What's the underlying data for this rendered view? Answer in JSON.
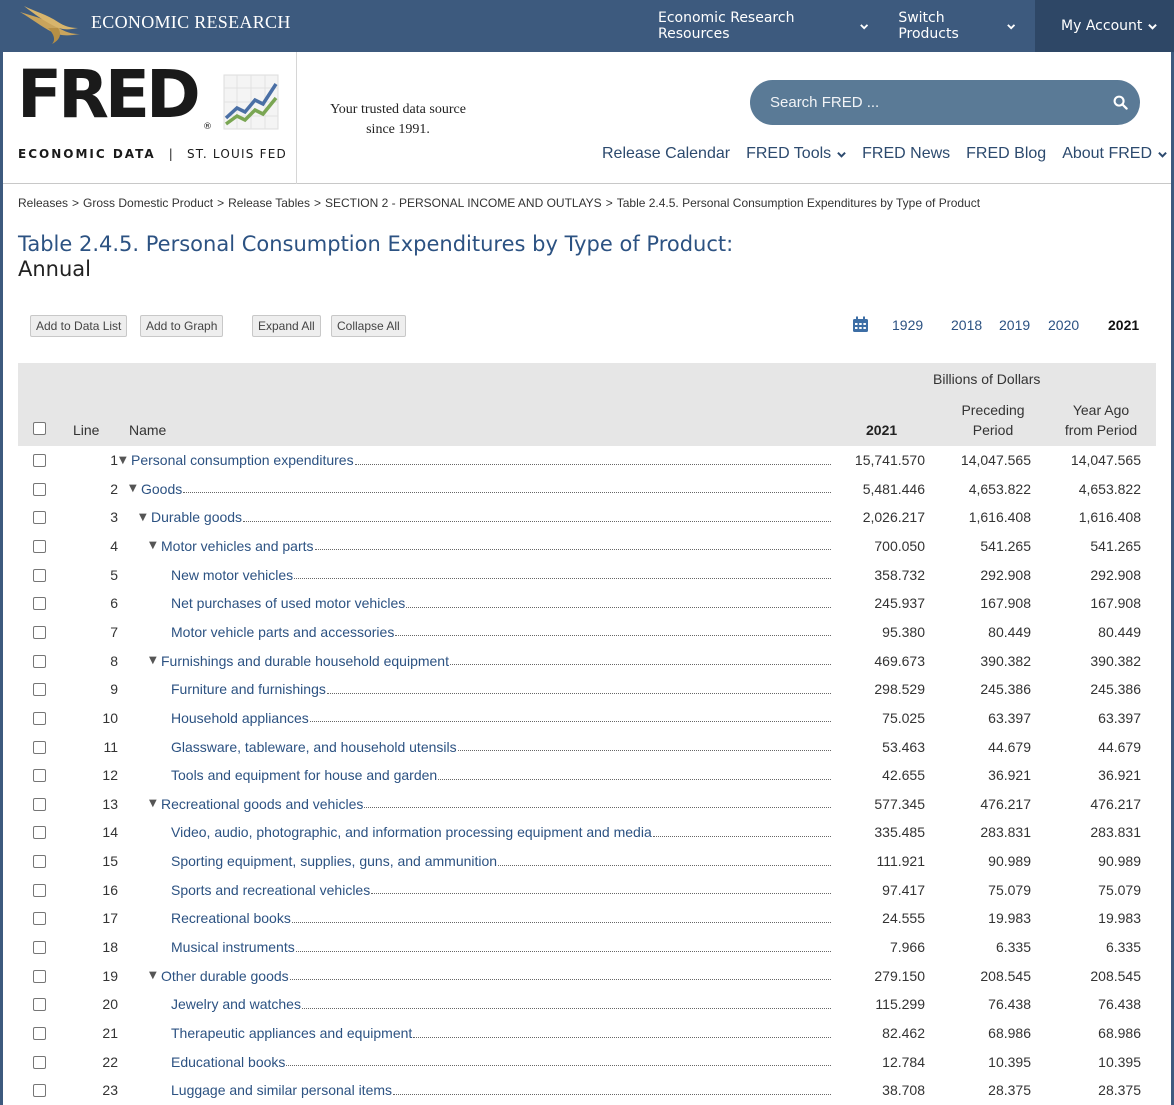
{
  "topbar": {
    "brand": "ECONOMIC RESEARCH",
    "nav": [
      "Economic Research Resources",
      "Switch Products",
      "My Account"
    ]
  },
  "header": {
    "logo_word": "FRED",
    "logo_sub_left": "ECONOMIC DATA",
    "logo_sub_right": "ST. LOUIS FED",
    "tagline_1": "Your trusted data source",
    "tagline_2": "since 1991.",
    "search_placeholder": "Search FRED ...",
    "nav": [
      "Release Calendar",
      "FRED Tools",
      "FRED News",
      "FRED Blog",
      "About FRED"
    ]
  },
  "breadcrumb": [
    "Releases",
    "Gross Domestic Product",
    "Release Tables",
    "SECTION 2 - PERSONAL INCOME AND OUTLAYS",
    "Table 2.4.5. Personal Consumption Expenditures by Type of Product"
  ],
  "page": {
    "title": "Table 2.4.5. Personal Consumption Expenditures by Type of Product:",
    "subtitle": "Annual"
  },
  "buttons": [
    "Add to Data List",
    "Add to Graph",
    "Expand All",
    "Collapse All"
  ],
  "years": [
    "1929",
    "2018",
    "2019",
    "2020",
    "2021"
  ],
  "current_year": "2021",
  "table": {
    "units": "Billions of Dollars",
    "headers": {
      "line": "Line",
      "name": "Name",
      "col1": "2021",
      "col2a": "Preceding",
      "col2b": "Period",
      "col3a": "Year Ago",
      "col3b": "from Period"
    },
    "rows": [
      {
        "line": "1",
        "name": "Personal consumption expenditures",
        "level": 0,
        "expandable": true,
        "v1": "15,741.570",
        "v2": "14,047.565",
        "v3": "14,047.565"
      },
      {
        "line": "2",
        "name": "Goods",
        "level": 1,
        "expandable": true,
        "v1": "5,481.446",
        "v2": "4,653.822",
        "v3": "4,653.822"
      },
      {
        "line": "3",
        "name": "Durable goods",
        "level": 2,
        "expandable": true,
        "v1": "2,026.217",
        "v2": "1,616.408",
        "v3": "1,616.408"
      },
      {
        "line": "4",
        "name": "Motor vehicles and parts",
        "level": 3,
        "expandable": true,
        "v1": "700.050",
        "v2": "541.265",
        "v3": "541.265"
      },
      {
        "line": "5",
        "name": "New motor vehicles",
        "level": 4,
        "expandable": false,
        "v1": "358.732",
        "v2": "292.908",
        "v3": "292.908"
      },
      {
        "line": "6",
        "name": "Net purchases of used motor vehicles",
        "level": 4,
        "expandable": false,
        "v1": "245.937",
        "v2": "167.908",
        "v3": "167.908"
      },
      {
        "line": "7",
        "name": "Motor vehicle parts and accessories",
        "level": 4,
        "expandable": false,
        "v1": "95.380",
        "v2": "80.449",
        "v3": "80.449"
      },
      {
        "line": "8",
        "name": "Furnishings and durable household equipment",
        "level": 3,
        "expandable": true,
        "v1": "469.673",
        "v2": "390.382",
        "v3": "390.382"
      },
      {
        "line": "9",
        "name": "Furniture and furnishings",
        "level": 4,
        "expandable": false,
        "v1": "298.529",
        "v2": "245.386",
        "v3": "245.386"
      },
      {
        "line": "10",
        "name": "Household appliances",
        "level": 4,
        "expandable": false,
        "v1": "75.025",
        "v2": "63.397",
        "v3": "63.397"
      },
      {
        "line": "11",
        "name": "Glassware, tableware, and household utensils",
        "level": 4,
        "expandable": false,
        "v1": "53.463",
        "v2": "44.679",
        "v3": "44.679"
      },
      {
        "line": "12",
        "name": "Tools and equipment for house and garden",
        "level": 4,
        "expandable": false,
        "v1": "42.655",
        "v2": "36.921",
        "v3": "36.921"
      },
      {
        "line": "13",
        "name": "Recreational goods and vehicles",
        "level": 3,
        "expandable": true,
        "v1": "577.345",
        "v2": "476.217",
        "v3": "476.217"
      },
      {
        "line": "14",
        "name": "Video, audio, photographic, and information processing equipment and media",
        "level": 4,
        "expandable": false,
        "v1": "335.485",
        "v2": "283.831",
        "v3": "283.831"
      },
      {
        "line": "15",
        "name": "Sporting equipment, supplies, guns, and ammunition",
        "level": 4,
        "expandable": false,
        "v1": "111.921",
        "v2": "90.989",
        "v3": "90.989"
      },
      {
        "line": "16",
        "name": "Sports and recreational vehicles",
        "level": 4,
        "expandable": false,
        "v1": "97.417",
        "v2": "75.079",
        "v3": "75.079"
      },
      {
        "line": "17",
        "name": "Recreational books",
        "level": 4,
        "expandable": false,
        "v1": "24.555",
        "v2": "19.983",
        "v3": "19.983"
      },
      {
        "line": "18",
        "name": "Musical instruments",
        "level": 4,
        "expandable": false,
        "v1": "7.966",
        "v2": "6.335",
        "v3": "6.335"
      },
      {
        "line": "19",
        "name": "Other durable goods",
        "level": 3,
        "expandable": true,
        "v1": "279.150",
        "v2": "208.545",
        "v3": "208.545"
      },
      {
        "line": "20",
        "name": "Jewelry and watches",
        "level": 4,
        "expandable": false,
        "v1": "115.299",
        "v2": "76.438",
        "v3": "76.438"
      },
      {
        "line": "21",
        "name": "Therapeutic appliances and equipment",
        "level": 4,
        "expandable": false,
        "v1": "82.462",
        "v2": "68.986",
        "v3": "68.986"
      },
      {
        "line": "22",
        "name": "Educational books",
        "level": 4,
        "expandable": false,
        "v1": "12.784",
        "v2": "10.395",
        "v3": "10.395"
      },
      {
        "line": "23",
        "name": "Luggage and similar personal items",
        "level": 4,
        "expandable": false,
        "v1": "38.708",
        "v2": "28.375",
        "v3": "28.375"
      }
    ]
  },
  "colors": {
    "topbar": "#3d5a7e",
    "link": "#2c5282",
    "search": "#5a7a96"
  }
}
